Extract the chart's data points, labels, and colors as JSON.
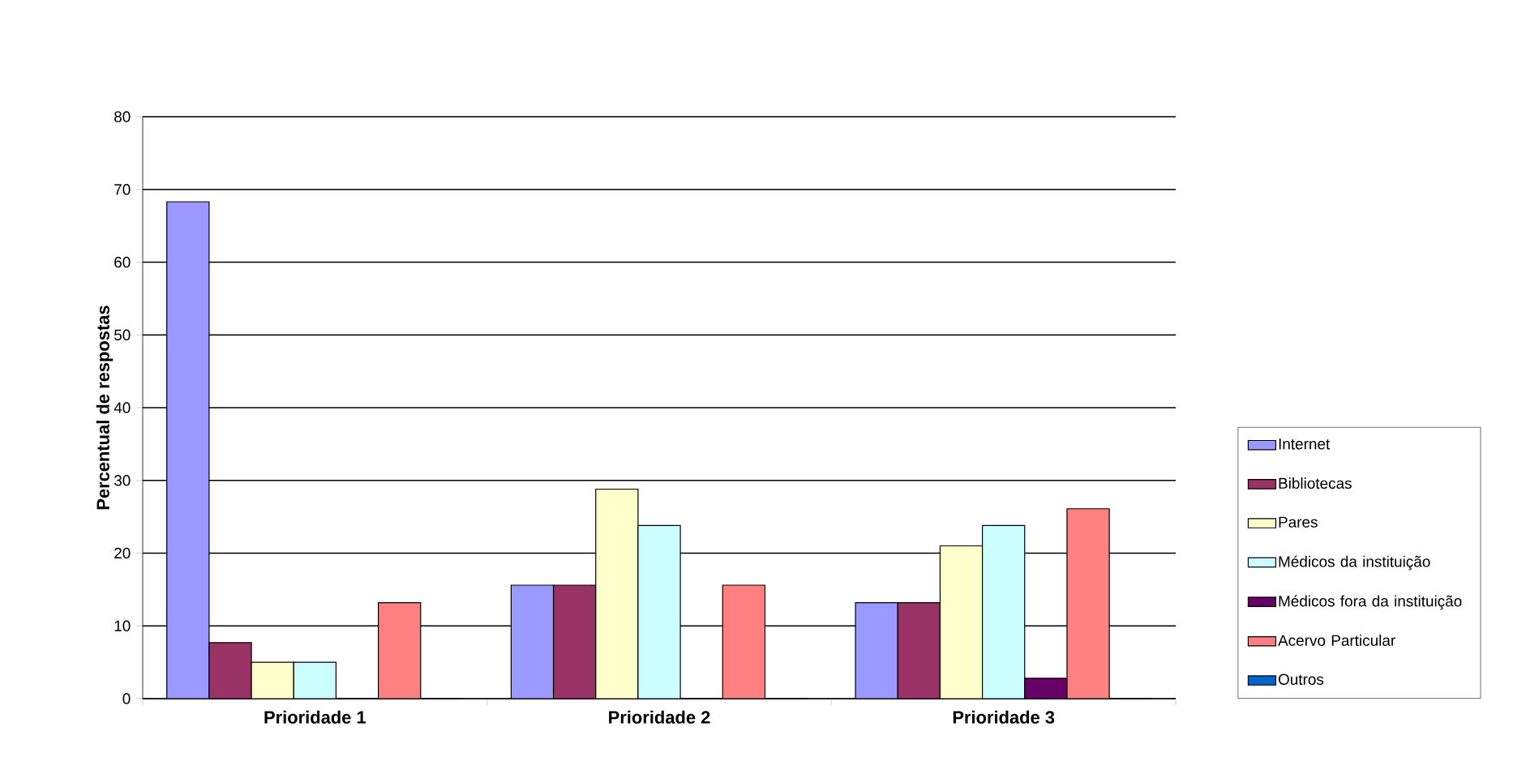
{
  "chart_data": {
    "type": "bar",
    "ylabel": "Percentual de respostas",
    "categories": [
      "Prioridade 1",
      "Prioridade 2",
      "Prioridade 3"
    ],
    "series": [
      {
        "name": "Internet",
        "color": "#9999ff",
        "values": [
          68.3,
          15.6,
          13.2
        ]
      },
      {
        "name": "Bibliotecas",
        "color": "#993366",
        "values": [
          7.7,
          15.6,
          13.2
        ]
      },
      {
        "name": "Pares",
        "color": "#ffffcc",
        "values": [
          5.0,
          28.8,
          21.0
        ]
      },
      {
        "name": "Médicos da instituição",
        "color": "#ccffff",
        "values": [
          5.0,
          23.8,
          23.8
        ]
      },
      {
        "name": "Médicos fora da instituição",
        "color": "#660066",
        "values": [
          0,
          0,
          2.8
        ]
      },
      {
        "name": "Acervo Particular",
        "color": "#ff8080",
        "values": [
          13.2,
          15.6,
          26.1
        ]
      },
      {
        "name": "Outros",
        "color": "#0066cc",
        "values": [
          0,
          0,
          0
        ]
      }
    ],
    "ylim": [
      0,
      80
    ],
    "yticks": [
      0,
      10,
      20,
      30,
      40,
      50,
      60,
      70,
      80
    ],
    "grid": "y",
    "legend": "right"
  }
}
